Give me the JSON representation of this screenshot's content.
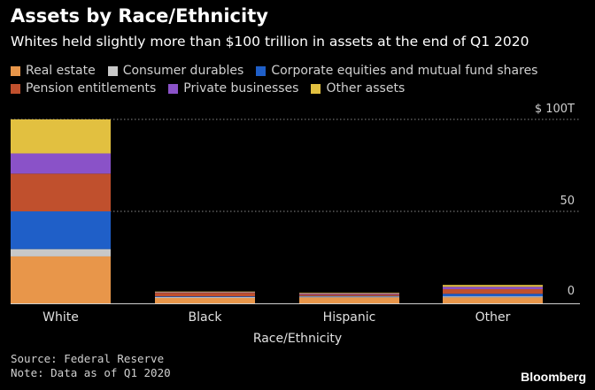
{
  "chart_data": {
    "type": "bar",
    "stacked": true,
    "title": "Assets by Race/Ethnicity",
    "subtitle": "Whites held slightly more than $100 trillion in assets at the end of Q1 2020",
    "xlabel": "Race/Ethnicity",
    "ylabel": "",
    "ylim": [
      0,
      100
    ],
    "yticks": [
      {
        "value": 0,
        "label": "0"
      },
      {
        "value": 50,
        "label": "50"
      },
      {
        "value": 100,
        "label": "$ 100T"
      }
    ],
    "grid": true,
    "legend_position": "top",
    "categories": [
      "White",
      "Black",
      "Hispanic",
      "Other"
    ],
    "series": [
      {
        "name": "Real estate",
        "color": "#e8964a",
        "values": [
          25.5,
          2.9,
          3.2,
          3.2
        ]
      },
      {
        "name": "Consumer durables",
        "color": "#c8c8c8",
        "values": [
          4.0,
          0.5,
          0.5,
          0.6
        ]
      },
      {
        "name": "Corporate equities and mutual fund shares",
        "color": "#1f5fc8",
        "values": [
          20.5,
          0.4,
          0.3,
          1.4
        ]
      },
      {
        "name": "Pension entitlements",
        "color": "#c0502d",
        "values": [
          20.5,
          1.9,
          0.9,
          2.5
        ]
      },
      {
        "name": "Private businesses",
        "color": "#8a52c8",
        "values": [
          11.0,
          0.3,
          0.5,
          1.3
        ]
      },
      {
        "name": "Other assets",
        "color": "#e2c040",
        "values": [
          18.5,
          0.4,
          0.4,
          1.0
        ]
      }
    ]
  },
  "source": "Source: Federal Reserve",
  "note": "Note: Data as of Q1 2020",
  "brand": "Bloomberg"
}
